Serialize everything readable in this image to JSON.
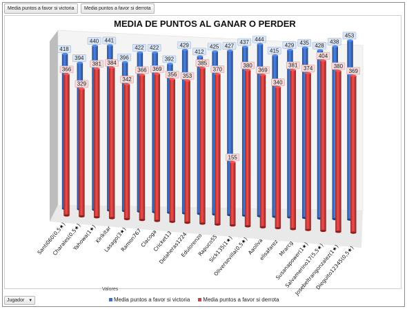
{
  "field_buttons": [
    "Media puntos a favor si victoria",
    "Media puntos a favor si derrota"
  ],
  "axis_field": {
    "label": "Jugador"
  },
  "values_label": "Valores",
  "colors": {
    "victoria": "#3f6fc4",
    "derrota": "#d2403f",
    "wall": "#bdbdbd"
  },
  "chart_data": {
    "type": "bar",
    "title": "MEDIA DE PUNTOS AL GANAR O PERDER",
    "categories": [
      "Santi060(0,5★)",
      "Charales(0,5★)",
      "Yahowa(1★)",
      "Kirikitar",
      "Lasago(3★)",
      "Ramon767",
      "Clacoga",
      "Cricket13",
      "Delaheras1224",
      "Edulorenzo",
      "Rapuco55",
      "Sick135(1★)",
      "Oliversevilla(0,5★)",
      "Aaoliva",
      "elisafarez",
      "Mrarcg",
      "Susanapower(1★)",
      "Salvamerino17(5,5★)",
      "Josebeltrangonzalez(1★)",
      "Dieguito12345(0,5★)"
    ],
    "series": [
      {
        "name": "Media puntos a favor si victoria",
        "values": [
          418,
          394,
          440,
          441,
          396,
          422,
          422,
          392,
          429,
          412,
          425,
          427,
          437,
          444,
          415,
          429,
          435,
          428,
          438,
          453
        ]
      },
      {
        "name": "Media puntos a favor si derrota",
        "values": [
          366,
          329,
          381,
          384,
          342,
          366,
          369,
          356,
          353,
          385,
          370,
          155,
          380,
          369,
          340,
          381,
          374,
          404,
          380,
          369
        ]
      }
    ],
    "ylim": [
      0,
      500
    ],
    "legend_position": "bottom",
    "grid": false
  }
}
